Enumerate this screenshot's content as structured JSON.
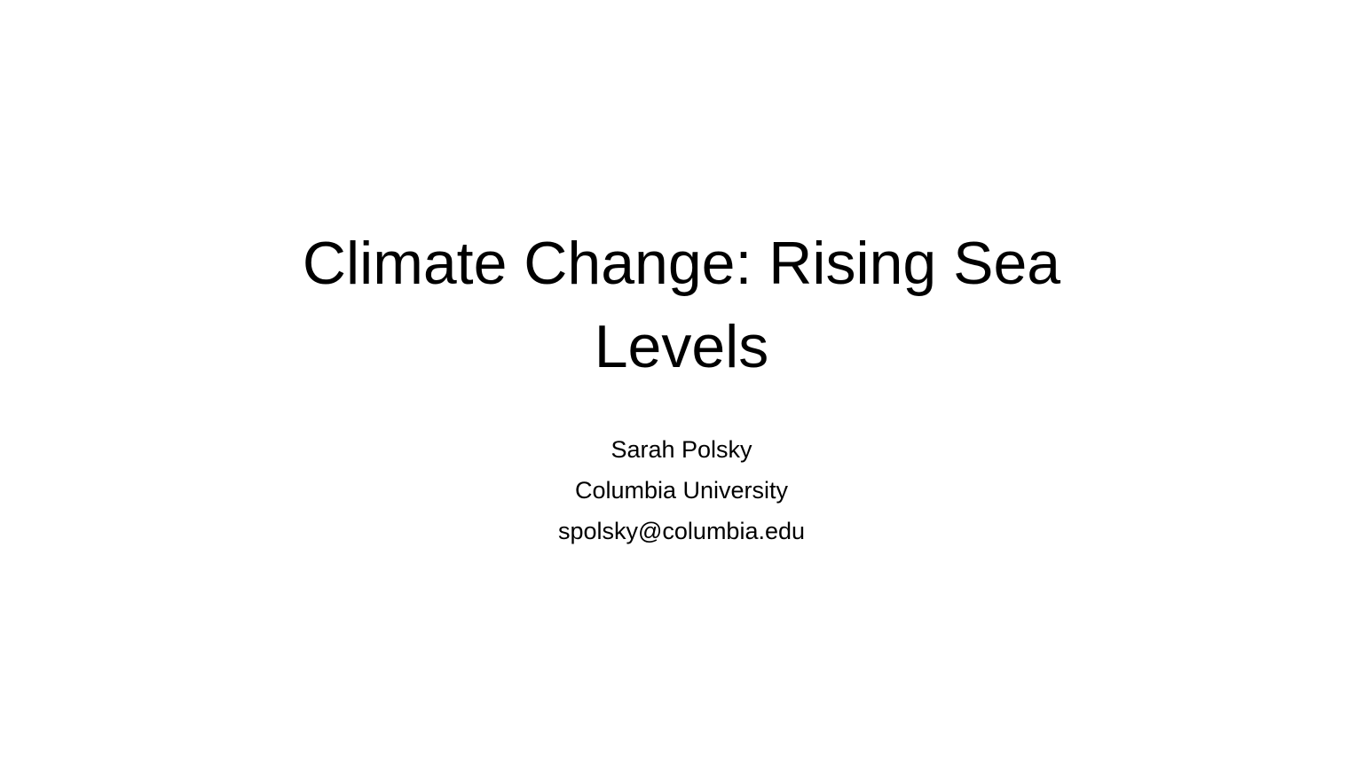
{
  "slide": {
    "title_lines": [
      "Climate Change: Rising Sea",
      "Levels"
    ],
    "author": "Sarah Polsky",
    "affiliation": "Columbia University",
    "email": "spolsky@columbia.edu"
  }
}
